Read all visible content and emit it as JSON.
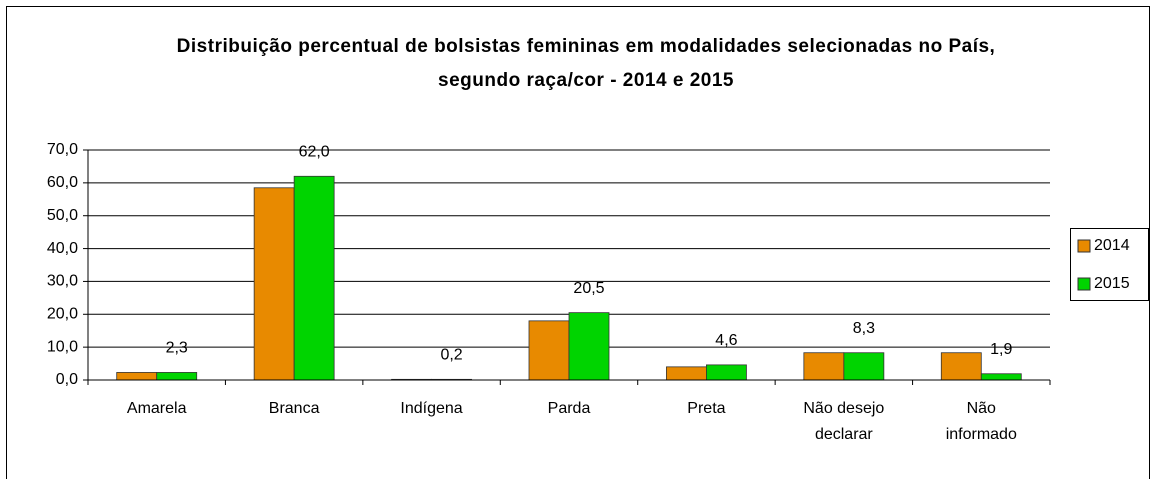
{
  "chart_data": {
    "type": "bar",
    "title": "Distribuição percentual de bolsistas femininas em modalidades selecionadas no País, segundo raça/cor - 2014 e 2015",
    "categories": [
      "Amarela",
      "Branca",
      "Indígena",
      "Parda",
      "Preta",
      "Não desejo declarar",
      "Não informado"
    ],
    "series": [
      {
        "name": "2014",
        "color": "#e88a00",
        "values": [
          2.3,
          58.5,
          0.2,
          18.0,
          4.0,
          8.3,
          8.3
        ]
      },
      {
        "name": "2015",
        "color": "#00d400",
        "values": [
          2.3,
          62.0,
          0.2,
          20.5,
          4.6,
          8.3,
          1.9
        ],
        "value_labels": [
          "2,3",
          "62,0",
          "0,2",
          "20,5",
          "4,6",
          "8,3",
          "1,9"
        ]
      }
    ],
    "ylim": [
      0,
      70
    ],
    "yticks": [
      {
        "value": 0,
        "label": "0,0"
      },
      {
        "value": 10,
        "label": "10,0"
      },
      {
        "value": 20,
        "label": "20,0"
      },
      {
        "value": 30,
        "label": "30,0"
      },
      {
        "value": 40,
        "label": "40,0"
      },
      {
        "value": 50,
        "label": "50,0"
      },
      {
        "value": 60,
        "label": "60,0"
      },
      {
        "value": 70,
        "label": "70,0"
      }
    ],
    "grid": true,
    "legend": "right"
  }
}
